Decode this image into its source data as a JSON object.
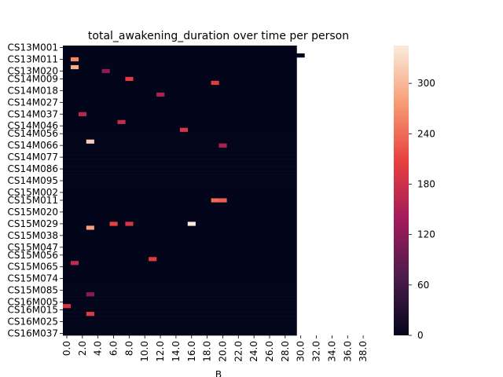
{
  "chart_data": {
    "type": "heatmap",
    "title": "total_awakening_duration over time per person",
    "xlabel": "B",
    "ylabel": "",
    "x_tick_labels": [
      "0.0",
      "2.0",
      "4.0",
      "6.0",
      "8.0",
      "10.0",
      "12.0",
      "14.0",
      "16.0",
      "18.0",
      "20.0",
      "22.0",
      "24.0",
      "26.0",
      "28.0",
      "30.0",
      "32.0",
      "34.0",
      "36.0",
      "38.0"
    ],
    "y_tick_labels": [
      "CS13M001",
      "CS13M011",
      "CS13M020",
      "CS14M009",
      "CS14M018",
      "CS14M027",
      "CS14M037",
      "CS14M046",
      "CS14M056",
      "CS14M066",
      "CS14M077",
      "CS14M086",
      "CS14M095",
      "CS15M002",
      "CS15M011",
      "CS15M020",
      "CS15M029",
      "CS15M038",
      "CS15M047",
      "CS15M056",
      "CS15M065",
      "CS15M074",
      "CS15M085",
      "CS16M005",
      "CS16M015",
      "CS16M025",
      "CS16M037"
    ],
    "n_rows": 74,
    "n_cols": 40,
    "colorbar": {
      "min": 0,
      "max": 345,
      "ticks": [
        0,
        60,
        120,
        180,
        240,
        300
      ],
      "colormap": "rocket",
      "colors": [
        "#03051a",
        "#4c1d4b",
        "#a11a5b",
        "#e83f3f",
        "#f69c73",
        "#faebdd"
      ]
    },
    "background_value": 0,
    "notable_cells": [
      {
        "row": 3,
        "col": 1,
        "value": 260
      },
      {
        "row": 5,
        "col": 1,
        "value": 290
      },
      {
        "row": 6,
        "col": 5,
        "value": 120
      },
      {
        "row": 8,
        "col": 8,
        "value": 200
      },
      {
        "row": 9,
        "col": 19,
        "value": 200
      },
      {
        "row": 12,
        "col": 12,
        "value": 150
      },
      {
        "row": 17,
        "col": 2,
        "value": 160
      },
      {
        "row": 19,
        "col": 7,
        "value": 170
      },
      {
        "row": 21,
        "col": 15,
        "value": 190
      },
      {
        "row": 24,
        "col": 3,
        "value": 320
      },
      {
        "row": 25,
        "col": 20,
        "value": 150
      },
      {
        "row": 39,
        "col": 19,
        "value": 240
      },
      {
        "row": 39,
        "col": 20,
        "value": 230
      },
      {
        "row": 45,
        "col": 6,
        "value": 210
      },
      {
        "row": 45,
        "col": 8,
        "value": 190
      },
      {
        "row": 45,
        "col": 16,
        "value": 345
      },
      {
        "row": 46,
        "col": 3,
        "value": 280
      },
      {
        "row": 54,
        "col": 11,
        "value": 200
      },
      {
        "row": 55,
        "col": 1,
        "value": 170
      },
      {
        "row": 63,
        "col": 3,
        "value": 120
      },
      {
        "row": 66,
        "col": 0,
        "value": 190
      },
      {
        "row": 68,
        "col": 3,
        "value": 200
      }
    ],
    "missing_right_extent_cols": [
      30,
      30,
      31,
      30,
      30,
      30,
      30,
      30,
      30,
      30,
      30,
      30,
      30,
      30,
      30,
      30,
      30,
      30,
      30,
      30,
      30,
      30,
      30,
      30,
      30,
      30,
      30,
      30,
      30,
      30,
      30,
      30,
      30,
      30,
      30,
      30,
      30,
      30,
      30,
      30,
      30,
      30,
      30,
      30,
      30,
      30,
      30,
      30,
      30,
      30,
      30,
      30,
      30,
      30,
      30,
      30,
      30,
      30,
      30,
      30,
      30,
      30,
      30,
      30,
      30,
      30,
      30,
      30,
      30,
      30,
      30,
      30,
      30,
      30
    ]
  }
}
